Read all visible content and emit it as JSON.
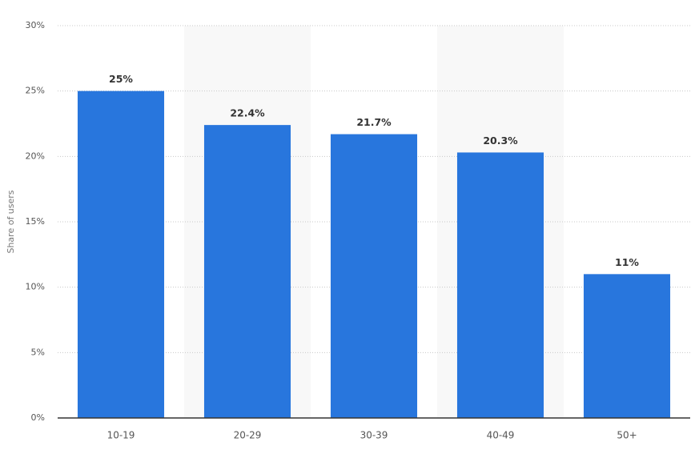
{
  "chart_data": {
    "type": "bar",
    "y_label": "Share of users",
    "categories": [
      "10-19",
      "20-29",
      "30-39",
      "40-49",
      "50+"
    ],
    "values": [
      25,
      22.4,
      21.7,
      20.3,
      11
    ],
    "value_labels": [
      "25%",
      "22.4%",
      "21.7%",
      "20.3%",
      "11%"
    ],
    "color": "#2876dd",
    "ylim": [
      0,
      30
    ],
    "yticks": [
      {
        "value": 0,
        "label": "0%"
      },
      {
        "value": 5,
        "label": "5%"
      },
      {
        "value": 10,
        "label": "10%"
      },
      {
        "value": 15,
        "label": "15%"
      },
      {
        "value": 20,
        "label": "20%"
      },
      {
        "value": 25,
        "label": "25%"
      },
      {
        "value": 30,
        "label": "30%"
      }
    ],
    "grid": true
  }
}
